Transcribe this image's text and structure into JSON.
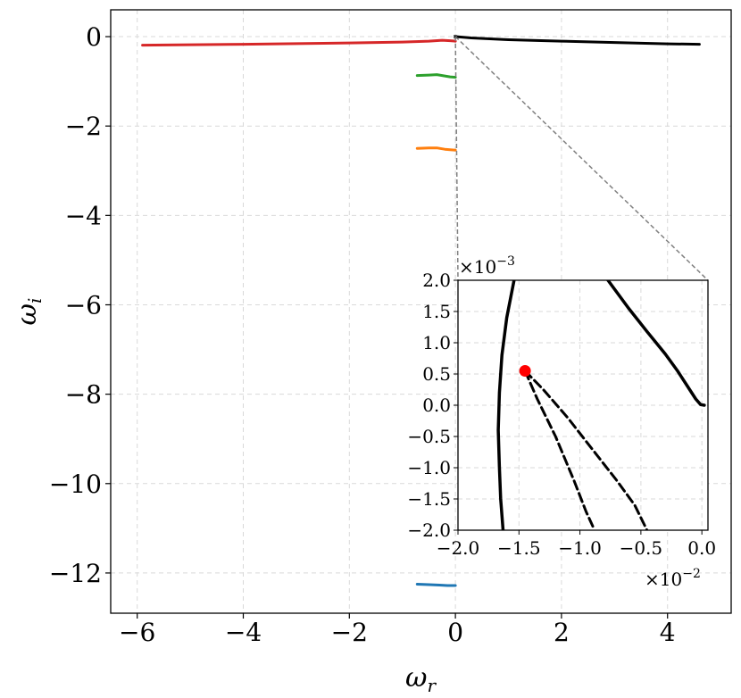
{
  "chart_data": {
    "type": "line",
    "main": {
      "xlabel": "ω",
      "xlabel_sub": "r",
      "ylabel": "ω",
      "ylabel_sub": "i",
      "xlim": [
        -6.5,
        5.2
      ],
      "ylim": [
        -12.9,
        0.6
      ],
      "grid": true,
      "x_ticks": [
        {
          "value": -6,
          "label": "−6"
        },
        {
          "value": -4,
          "label": "−4"
        },
        {
          "value": -2,
          "label": "−2"
        },
        {
          "value": 0,
          "label": "0"
        },
        {
          "value": 2,
          "label": "2"
        },
        {
          "value": 4,
          "label": "4"
        }
      ],
      "y_ticks": [
        {
          "value": 0,
          "label": "0"
        },
        {
          "value": -2,
          "label": "−2"
        },
        {
          "value": -4,
          "label": "−4"
        },
        {
          "value": -6,
          "label": "−6"
        },
        {
          "value": -8,
          "label": "−8"
        },
        {
          "value": -10,
          "label": "−10"
        },
        {
          "value": -12,
          "label": "−12"
        }
      ],
      "series": [
        {
          "color": "#d62728",
          "style": "solid",
          "x": [
            -5.9,
            -4.0,
            -2.0,
            -1.0,
            -0.5,
            -0.25,
            -0.1,
            0.0
          ],
          "y": [
            -0.19,
            -0.17,
            -0.14,
            -0.12,
            -0.1,
            -0.08,
            -0.09,
            -0.1
          ]
        },
        {
          "color": "#000000",
          "style": "solid",
          "x": [
            0.0,
            0.3,
            1.0,
            2.0,
            3.0,
            4.0,
            4.6
          ],
          "y": [
            0.0,
            -0.03,
            -0.07,
            -0.1,
            -0.13,
            -0.16,
            -0.17
          ]
        },
        {
          "color": "#2ca02c",
          "style": "solid",
          "x": [
            -0.72,
            -0.5,
            -0.35,
            -0.2,
            -0.1,
            0.0
          ],
          "y": [
            -0.87,
            -0.86,
            -0.85,
            -0.88,
            -0.9,
            -0.91
          ]
        },
        {
          "color": "#ff7f0e",
          "style": "solid",
          "x": [
            -0.72,
            -0.5,
            -0.35,
            -0.2,
            -0.1,
            0.0
          ],
          "y": [
            -2.5,
            -2.49,
            -2.49,
            -2.52,
            -2.53,
            -2.54
          ]
        },
        {
          "color": "#1f77b4",
          "style": "solid",
          "x": [
            -0.72,
            -0.5,
            -0.3,
            -0.15,
            0.0
          ],
          "y": [
            -12.25,
            -12.26,
            -12.27,
            -12.28,
            -12.28
          ]
        }
      ],
      "zoom_lines_color": "#808080"
    },
    "inset": {
      "xlim": [
        -0.02,
        0.0005
      ],
      "ylim": [
        -0.002,
        0.002
      ],
      "grid": true,
      "x_multiplier_label": "×10",
      "x_multiplier_exp": "−2",
      "y_multiplier_label": "×10",
      "y_multiplier_exp": "−3",
      "x_ticks": [
        {
          "value": -0.02,
          "label": "−2.0"
        },
        {
          "value": -0.015,
          "label": "−1.5"
        },
        {
          "value": -0.01,
          "label": "−1.0"
        },
        {
          "value": -0.005,
          "label": "−0.5"
        },
        {
          "value": 0.0,
          "label": "0.0"
        }
      ],
      "y_ticks": [
        {
          "value": 0.002,
          "label": "2.0"
        },
        {
          "value": 0.0015,
          "label": "1.5"
        },
        {
          "value": 0.001,
          "label": "1.0"
        },
        {
          "value": 0.0005,
          "label": "0.5"
        },
        {
          "value": 0.0,
          "label": "0.0"
        },
        {
          "value": -0.0005,
          "label": "−0.5"
        },
        {
          "value": -0.001,
          "label": "−1.0"
        },
        {
          "value": -0.0015,
          "label": "−1.5"
        },
        {
          "value": -0.002,
          "label": "−2.0"
        }
      ],
      "series": [
        {
          "color": "#000000",
          "style": "solid",
          "x": [
            -0.0163,
            -0.0165,
            -0.0166,
            -0.0167,
            -0.0166,
            -0.0164,
            -0.016,
            -0.0154
          ],
          "y": [
            -0.002,
            -0.0015,
            -0.001,
            -0.0004,
            0.0002,
            0.0008,
            0.0014,
            0.002
          ]
        },
        {
          "color": "#000000",
          "style": "solid",
          "x": [
            -0.0077,
            -0.006,
            -0.0045,
            -0.003,
            -0.002,
            -0.001,
            -0.0005,
            -0.0001,
            0.0002
          ],
          "y": [
            0.002,
            0.00155,
            0.00118,
            0.00082,
            0.00055,
            0.00025,
            0.0001,
            1e-05,
            0.0
          ]
        },
        {
          "color": "#000000",
          "style": "dashed",
          "x": [
            -0.0145,
            -0.0135,
            -0.012,
            -0.0105,
            -0.0095,
            -0.0088
          ],
          "y": [
            0.00055,
            0.0001,
            -0.0005,
            -0.0012,
            -0.0017,
            -0.002
          ]
        },
        {
          "color": "#000000",
          "style": "dashed",
          "x": [
            -0.0145,
            -0.013,
            -0.011,
            -0.009,
            -0.007,
            -0.0055,
            -0.0045
          ],
          "y": [
            0.00055,
            0.00025,
            -0.0002,
            -0.0007,
            -0.0012,
            -0.0016,
            -0.002
          ]
        }
      ],
      "point": {
        "x": -0.0145,
        "y": 0.00055,
        "color": "#ff0000"
      }
    }
  }
}
